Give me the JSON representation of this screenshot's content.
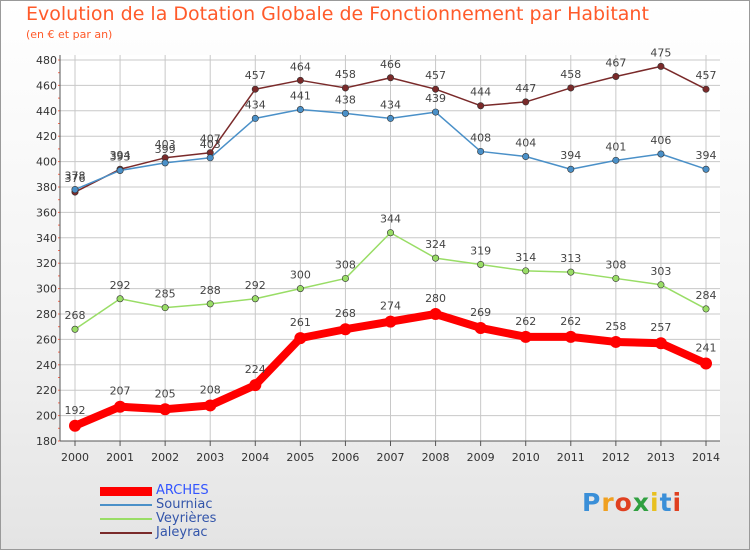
{
  "chart_data": {
    "type": "line",
    "title": "Evolution de la Dotation Globale de Fonctionnement par Habitant",
    "subtitle": "(en € et par an)",
    "xlabel": "",
    "ylabel": "",
    "x": [
      "2000",
      "2001",
      "2002",
      "2003",
      "2004",
      "2005",
      "2006",
      "2007",
      "2008",
      "2009",
      "2010",
      "2011",
      "2012",
      "2013",
      "2014"
    ],
    "ylim": [
      180,
      480
    ],
    "yticks": [
      180,
      200,
      220,
      240,
      260,
      280,
      300,
      320,
      340,
      360,
      380,
      400,
      420,
      440,
      460,
      480
    ],
    "grid": true,
    "legend_position": "bottom-left",
    "series": [
      {
        "name": "ARCHES",
        "color": "#ff0000",
        "values": [
          192,
          207,
          205,
          208,
          224,
          261,
          268,
          274,
          280,
          269,
          262,
          262,
          258,
          257,
          241
        ]
      },
      {
        "name": "Sourniac",
        "color": "#4a90c8",
        "values": [
          378,
          393,
          399,
          403,
          434,
          441,
          438,
          434,
          439,
          408,
          404,
          394,
          401,
          406,
          394
        ]
      },
      {
        "name": "Veyrières",
        "color": "#99dd66",
        "values": [
          268,
          292,
          285,
          288,
          292,
          300,
          308,
          344,
          324,
          319,
          314,
          313,
          308,
          303,
          284
        ]
      },
      {
        "name": "Jaleyrac",
        "color": "#7a2a2a",
        "values": [
          376,
          394,
          403,
          407,
          457,
          464,
          458,
          466,
          457,
          444,
          447,
          458,
          467,
          475,
          457
        ]
      }
    ]
  },
  "brand": {
    "letters": [
      "P",
      "r",
      "o",
      "x",
      "i",
      "t",
      "i"
    ],
    "colors": [
      "#3a8fd8",
      "#f0a020",
      "#e04020",
      "#30a040",
      "#e8c020",
      "#3a8fd8",
      "#e04020"
    ]
  },
  "colors": {
    "title": "#ff5a2a",
    "grid": "#c8c8c8",
    "axis_label": "#333333"
  }
}
